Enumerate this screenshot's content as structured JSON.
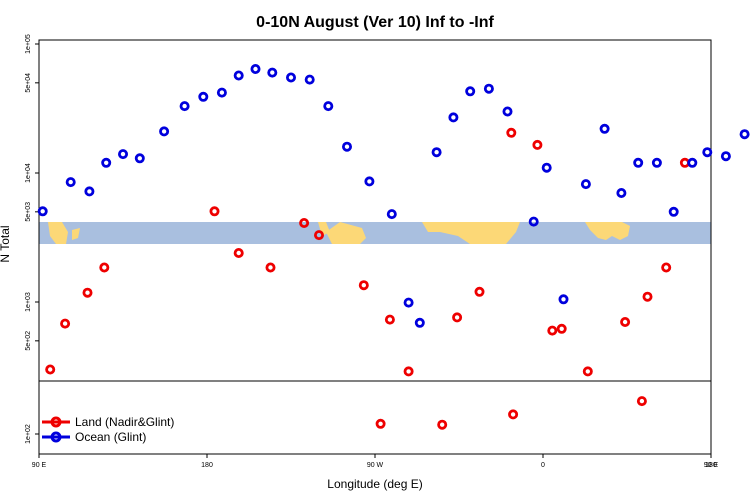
{
  "colors": {
    "land": "#ee0000",
    "ocean": "#0000dd",
    "band": "#a9bfdf",
    "landmass": "#fcd877"
  },
  "chart_data": {
    "type": "scatter",
    "title": "0-10N August (Ver 10)   Inf to -Inf",
    "xlabel": "Longitude (deg E)",
    "ylabel": "N Total",
    "y_scale": "log",
    "x_ticks": [
      "90 E",
      "180",
      "90 W",
      "0",
      "90 E",
      "180"
    ],
    "y_ticks_main": [
      "1e+05",
      "5e+04",
      "1e+04",
      "5e+03",
      "1e+03",
      "5e+02"
    ],
    "y_ticks_lower": [
      "1e+02"
    ],
    "legend": {
      "position": "bottom-left",
      "entries": [
        {
          "label": "Land (Nadir&Glint)",
          "color_key": "land"
        },
        {
          "label": "Ocean (Glint)",
          "color_key": "ocean"
        }
      ]
    },
    "series": [
      {
        "name": "Land (Nadir&Glint)",
        "color_key": "land",
        "panel": "main",
        "lon": [
          96,
          104,
          116,
          125,
          184,
          197,
          214,
          232,
          240,
          264,
          278,
          288,
          314,
          326,
          343,
          357,
          365,
          370,
          384,
          404,
          416,
          426,
          436
        ],
        "y": [
          300,
          680,
          1180,
          1850,
          5050,
          2400,
          1850,
          4100,
          3300,
          1350,
          730,
          290,
          760,
          1200,
          20500,
          16500,
          600,
          620,
          290,
          700,
          1100,
          1850,
          12000
        ]
      },
      {
        "name": "Ocean (Glint)",
        "color_key": "ocean",
        "panel": "main",
        "lon": [
          92,
          107,
          117,
          126,
          135,
          144,
          157,
          168,
          178,
          188,
          197,
          206,
          215,
          225,
          235,
          245,
          255,
          267,
          279,
          288,
          294,
          303,
          312,
          321,
          331,
          341,
          355,
          362,
          371,
          383,
          393,
          402,
          411,
          421,
          430,
          440,
          448,
          458,
          468
        ],
        "y": [
          5050,
          8500,
          7200,
          12000,
          14000,
          13000,
          21000,
          33000,
          39000,
          42000,
          57000,
          64000,
          60000,
          55000,
          53000,
          33000,
          16000,
          8600,
          4800,
          990,
          690,
          14500,
          27000,
          43000,
          45000,
          30000,
          4200,
          11000,
          1050,
          8200,
          22000,
          7000,
          12000,
          12000,
          5000,
          12000,
          14500,
          13500,
          20000
        ]
      },
      {
        "name": "Land (Nadir&Glint)",
        "color_key": "land",
        "panel": "lower",
        "lon": [
          273,
          306,
          344,
          413
        ],
        "y": [
          120,
          118,
          142,
          180
        ]
      }
    ]
  }
}
